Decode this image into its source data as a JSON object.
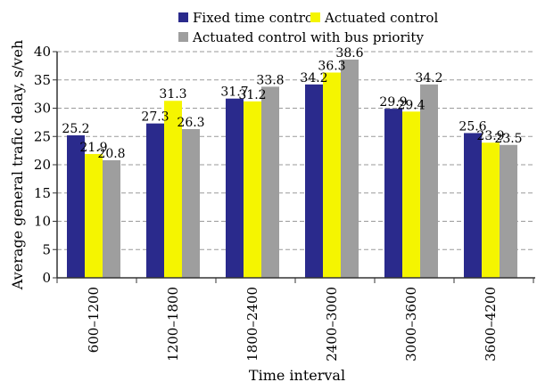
{
  "chart_data": {
    "type": "bar",
    "title": "",
    "xlabel": "Time interval",
    "ylabel": "Average general trafic delay, s/veh",
    "ylim": [
      0,
      40
    ],
    "yticks": [
      0,
      5,
      10,
      15,
      20,
      25,
      30,
      35,
      40
    ],
    "grid": "horizontal dashed",
    "legend_position": "top",
    "categories": [
      "600–1200",
      "1200–1800",
      "1800–2400",
      "2400–3000",
      "3000–3600",
      "3600–4200"
    ],
    "series": [
      {
        "name": "Fixed time control",
        "color": "#2a2a8c",
        "values": [
          25.2,
          27.3,
          31.7,
          34.2,
          29.9,
          25.6
        ]
      },
      {
        "name": "Actuated control",
        "color": "#f5f500",
        "values": [
          21.9,
          31.3,
          31.2,
          36.3,
          29.4,
          23.9
        ]
      },
      {
        "name": "Actuated control with bus priority",
        "color": "#9e9e9e",
        "values": [
          20.8,
          26.3,
          33.8,
          38.6,
          34.2,
          23.5
        ]
      }
    ]
  }
}
